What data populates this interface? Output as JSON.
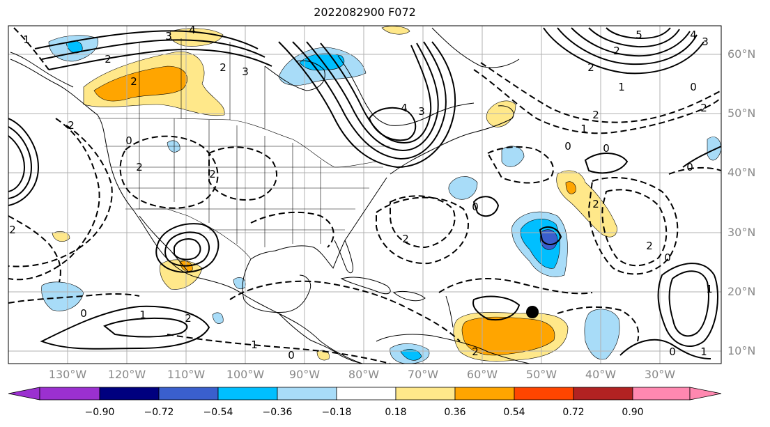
{
  "title": "2022082900 F072",
  "lat_labels": [
    "60°N",
    "50°N",
    "40°N",
    "30°N",
    "20°N",
    "10°N"
  ],
  "lon_labels": [
    "130°W",
    "120°W",
    "110°W",
    "100°W",
    "90°W",
    "80°W",
    "70°W",
    "60°W",
    "50°W",
    "40°W",
    "30°W"
  ],
  "colorbar": {
    "ticks": [
      "−0.90",
      "−0.72",
      "−0.54",
      "−0.36",
      "−0.18",
      "0.18",
      "0.36",
      "0.54",
      "0.72",
      "0.90"
    ],
    "colors": [
      "#9b30d0",
      "#00007f",
      "#3a5fcd",
      "#00bfff",
      "#a8dcf8",
      "#ffffff",
      "#ffe88a",
      "#ffa500",
      "#ff4500",
      "#b22222",
      "#ff88b0"
    ]
  },
  "contour_labels": [
    "3",
    "4",
    "2",
    "3",
    "2",
    "2",
    "1",
    "4",
    "3",
    "2",
    "2",
    "5",
    "4",
    "3",
    "2",
    "0",
    "2",
    "1",
    "2",
    "0",
    "2",
    "2",
    "2",
    "0",
    "2",
    "1",
    "0",
    "2",
    "0",
    "1",
    "2",
    "2",
    "1",
    "0",
    "1",
    "0",
    "2",
    "0",
    "0",
    "0",
    "1"
  ]
}
